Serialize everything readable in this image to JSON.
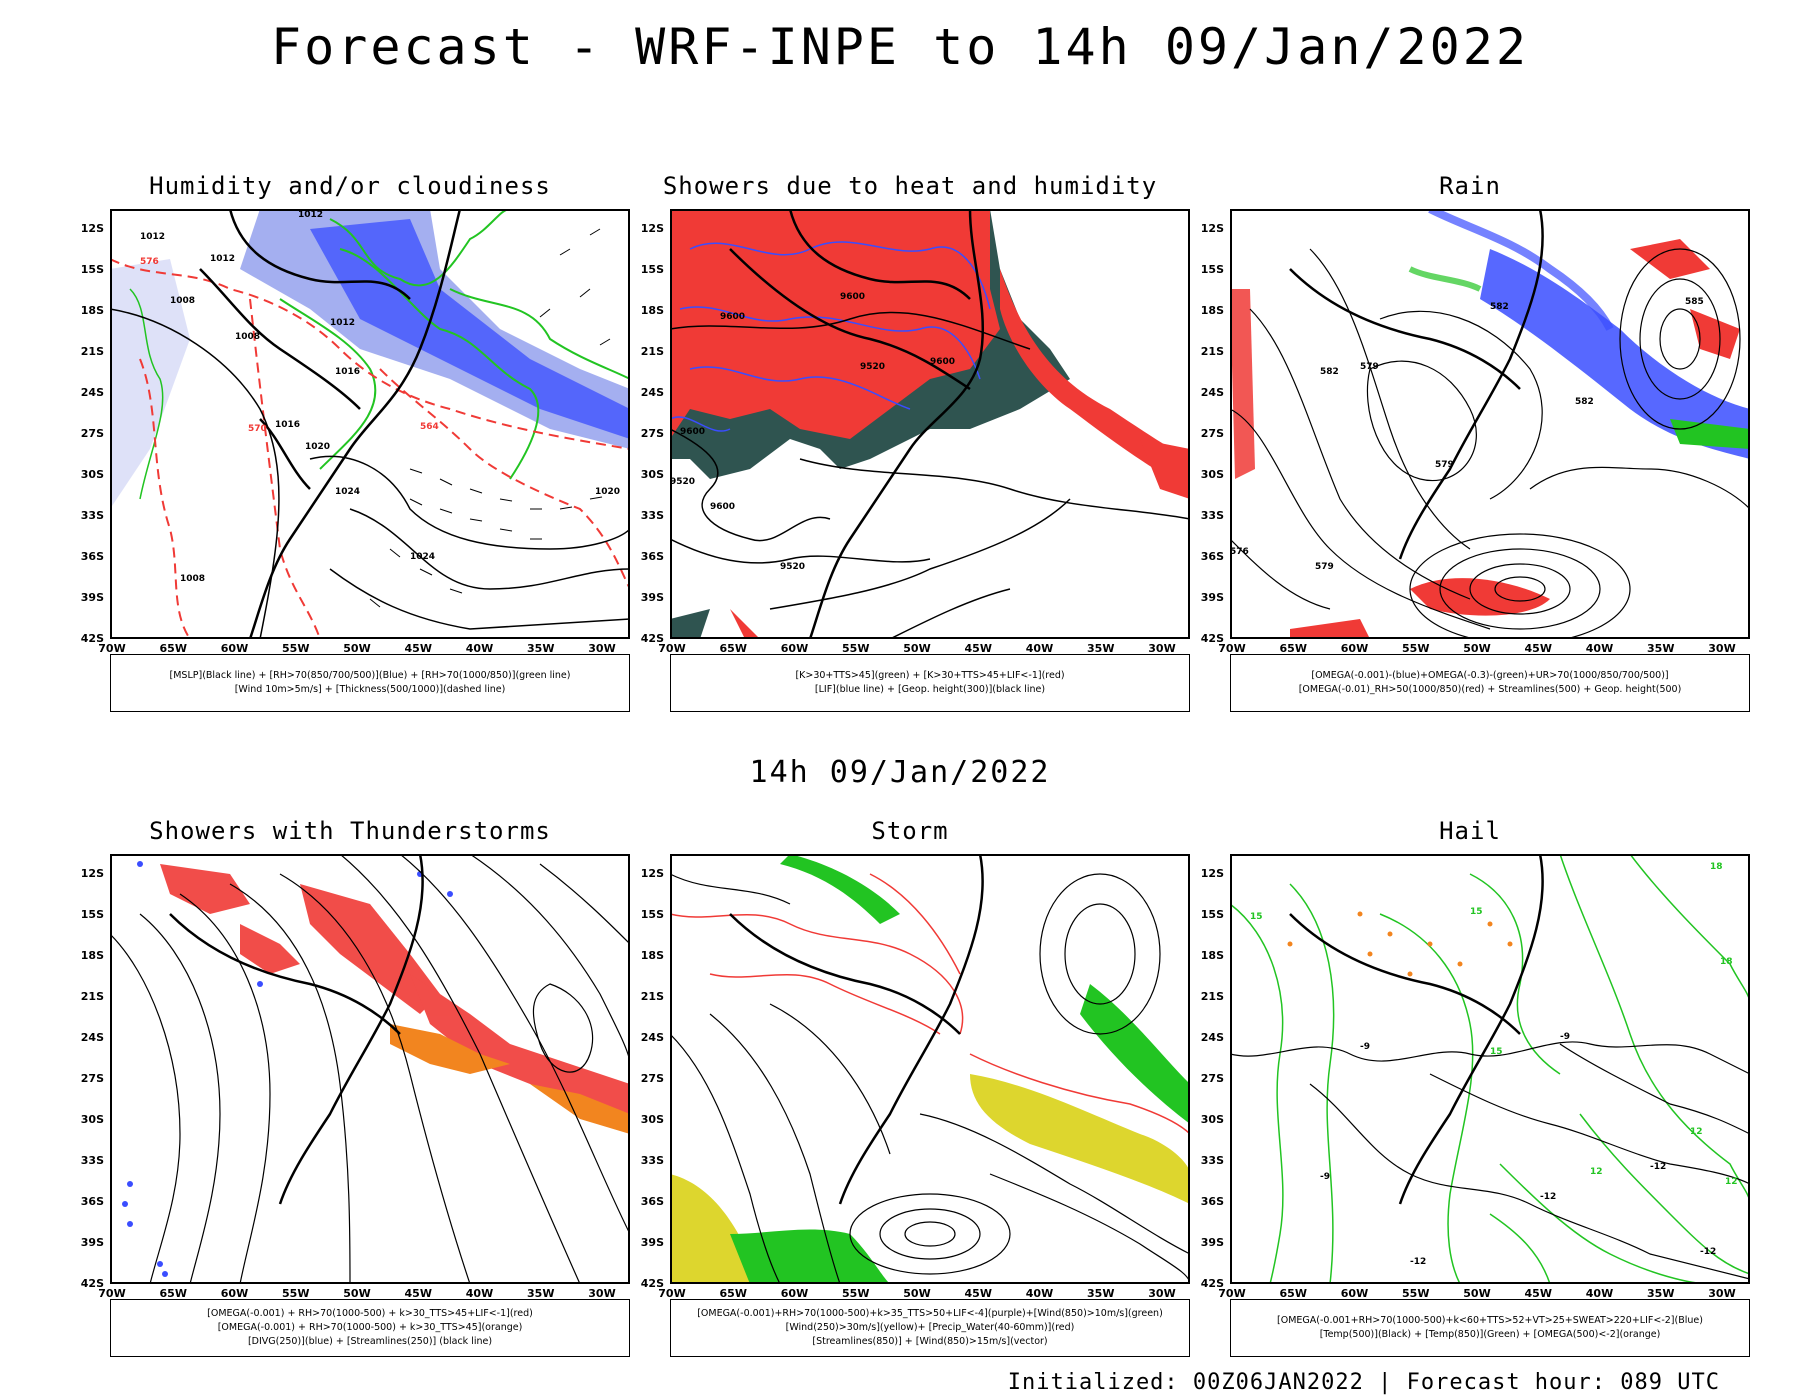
{
  "header": {
    "title": "Forecast - WRF-INPE to 14h 09/Jan/2022",
    "mid_title": "14h 09/Jan/2022",
    "footer": "Initialized: 00Z06JAN2022 | Forecast hour: 089 UTC"
  },
  "axes": {
    "lat_labels": [
      "12S",
      "15S",
      "18S",
      "21S",
      "24S",
      "27S",
      "30S",
      "33S",
      "36S",
      "39S",
      "42S"
    ],
    "lon_labels": [
      "70W",
      "65W",
      "60W",
      "55W",
      "50W",
      "45W",
      "40W",
      "35W",
      "30W"
    ]
  },
  "colors": {
    "blue": "#3a4dff",
    "light_blue": "#9aa6ee",
    "green": "#22c422",
    "red": "#f03a36",
    "dark_teal": "#2f5450",
    "orange": "#f2851f",
    "yellow": "#ddd62e",
    "purple": "#8a2be2"
  },
  "panels": [
    {
      "title": "Humidity and/or cloudiness",
      "legend": [
        "[MSLP](Black line) + [RH>70(850/700/500)](Blue) + [RH>70(1000/850)](green line)",
        "[Wind 10m>5m/s] + [Thickness(500/1000)](dashed line)"
      ],
      "contour_labels": [
        "1012",
        "1012",
        "1012",
        "1012",
        "1008",
        "1008",
        "1016",
        "1016",
        "1020",
        "1024",
        "1024",
        "1020",
        "1008",
        "576",
        "570",
        "564"
      ]
    },
    {
      "title": "Showers due to heat and humidity",
      "legend": [
        "[K>30+TTS>45](green) + [K>30+TTS>45+LIF<-1](red)",
        "[LIF](blue line) + [Geop. height(300)](black line)"
      ],
      "contour_labels": [
        "9600",
        "9600",
        "9520",
        "9600",
        "9600",
        "9600",
        "9520",
        "9520"
      ]
    },
    {
      "title": "Rain",
      "legend": [
        "[OMEGA(-0.001)-(blue)+OMEGA(-0.3)-(green)+UR>70(1000/850/700/500)]",
        "[OMEGA(-0.01)_RH>50(1000/850)(red) + Streamlines(500) + Geop. height(500)"
      ],
      "contour_labels": [
        "585",
        "582",
        "579",
        "582",
        "582",
        "579",
        "576",
        "579"
      ]
    },
    {
      "title": "Showers with Thunderstorms",
      "legend": [
        "[OMEGA(-0.001) + RH>70(1000-500) + k>30_TTS>45+LIF<-1](red)",
        "[OMEGA(-0.001) + RH>70(1000-500) + k>30_TTS>45](orange)",
        "[DIVG(250)](blue) + [Streamlines(250)] (black line)"
      ],
      "contour_labels": []
    },
    {
      "title": "Storm",
      "legend": [
        "[OMEGA(-0.001)+RH>70(1000-500)+k>35_TTS>50+LIF<-4](purple)+[Wind(850)>10m/s](green)",
        "[Wind(250)>30m/s](yellow)+ [Precip_Water(40-60mm)](red)",
        "[Streamlines(850)] + [Wind(850)>15m/s](vector)"
      ],
      "contour_labels": []
    },
    {
      "title": "Hail",
      "legend": [
        "[OMEGA(-0.001+RH>70(1000-500)+k<60+TTS>52+VT>25+SWEAT>220+LIF<-2](Blue)",
        "[Temp(500)](Black) + [Temp(850)](Green) + [OMEGA(500)<-2](orange)"
      ],
      "contour_labels": [
        "-9",
        "-9",
        "-9",
        "-12",
        "-12",
        "-12",
        "-12",
        "15",
        "15",
        "18",
        "18",
        "12",
        "12",
        "12",
        "15"
      ]
    }
  ]
}
